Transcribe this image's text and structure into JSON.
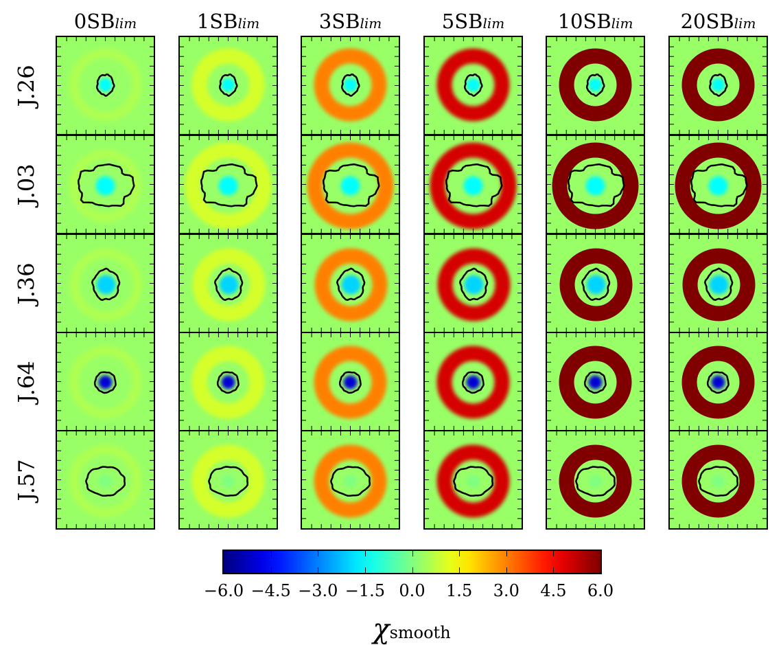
{
  "chart_data": {
    "type": "heatmap",
    "columns": [
      {
        "prefix": "0SB",
        "suffix": "lim",
        "ring_value": 0
      },
      {
        "prefix": "1SB",
        "suffix": "lim",
        "ring_value": 1
      },
      {
        "prefix": "3SB",
        "suffix": "lim",
        "ring_value": 3
      },
      {
        "prefix": "5SB",
        "suffix": "lim",
        "ring_value": 5
      },
      {
        "prefix": "10SB",
        "suffix": "lim",
        "ring_value": 10
      },
      {
        "prefix": "20SB",
        "suffix": "lim",
        "ring_value": 20
      }
    ],
    "rows": [
      {
        "label": "J.26",
        "core_value": -1.5
      },
      {
        "label": "J.03",
        "core_value": -1.5
      },
      {
        "label": "J.36",
        "core_value": -2.0
      },
      {
        "label": "J.64",
        "core_value": -5.0
      },
      {
        "label": "J.57",
        "core_value": 0.0
      }
    ],
    "colorbar": {
      "colormap": "jet",
      "range": [
        -6.0,
        6.0
      ],
      "ticks": [
        "−6.0",
        "−4.5",
        "−3.0",
        "−1.5",
        "0.0",
        "1.5",
        "3.0",
        "4.5",
        "6.0"
      ],
      "label_symbol": "χ",
      "label_sub": "smooth"
    },
    "background_value": 0.3,
    "contour_color": "#000000"
  }
}
